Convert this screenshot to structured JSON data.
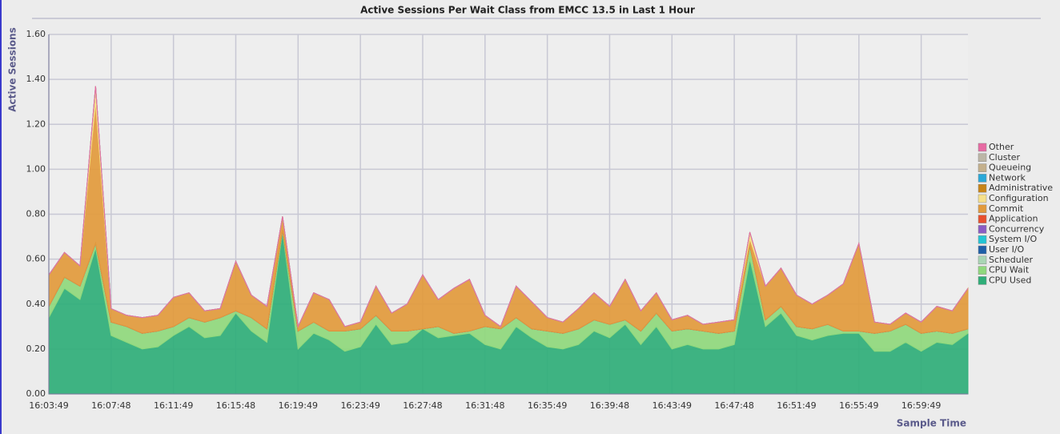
{
  "chart_data": {
    "type": "stacked-area",
    "title": "Active Sessions Per Wait Class from EMCC 13.5 in Last 1 Hour",
    "y_label": "Active Sessions",
    "x_label": "Sample Time",
    "grid": true,
    "legend": "right",
    "categories": [
      "16:03:49",
      null,
      null,
      null,
      "16:07:48",
      null,
      null,
      null,
      "16:11:49",
      null,
      null,
      null,
      "16:15:48",
      null,
      null,
      null,
      "16:19:49",
      null,
      null,
      null,
      "16:23:49",
      null,
      null,
      null,
      "16:27:48",
      null,
      null,
      null,
      "16:31:48",
      null,
      null,
      null,
      "16:35:49",
      null,
      null,
      null,
      "16:39:48",
      null,
      null,
      null,
      "16:43:49",
      null,
      null,
      null,
      "16:47:48",
      null,
      null,
      null,
      "16:51:49",
      null,
      null,
      null,
      "16:55:49",
      null,
      null,
      null,
      "16:59:49",
      null,
      null,
      null
    ],
    "ylim": [
      0,
      1.6
    ],
    "yticks": [
      {
        "value": 0,
        "label": "0.00"
      },
      {
        "value": 0.2,
        "label": "0.20"
      },
      {
        "value": 0.4,
        "label": "0.40"
      },
      {
        "value": 0.6,
        "label": "0.60"
      },
      {
        "value": 0.8,
        "label": "0.80"
      },
      {
        "value": 1.0,
        "label": "1.00"
      },
      {
        "value": 1.2,
        "label": "1.20"
      },
      {
        "value": 1.4,
        "label": "1.40"
      },
      {
        "value": 1.6,
        "label": "1.60"
      }
    ],
    "series": [
      {
        "name": "CPU Used",
        "color": "#2fae78",
        "values": [
          0.34,
          0.47,
          0.42,
          0.65,
          0.26,
          0.23,
          0.2,
          0.21,
          0.26,
          0.3,
          0.25,
          0.26,
          0.36,
          0.28,
          0.23,
          0.72,
          0.2,
          0.27,
          0.24,
          0.19,
          0.21,
          0.31,
          0.22,
          0.23,
          0.29,
          0.25,
          0.26,
          0.27,
          0.22,
          0.2,
          0.3,
          0.25,
          0.21,
          0.2,
          0.22,
          0.28,
          0.25,
          0.31,
          0.22,
          0.3,
          0.2,
          0.22,
          0.2,
          0.2,
          0.22,
          0.6,
          0.3,
          0.36,
          0.26,
          0.24,
          0.26,
          0.27,
          0.27,
          0.19,
          0.19,
          0.23,
          0.19,
          0.23,
          0.22,
          0.27
        ]
      },
      {
        "name": "CPU Wait",
        "color": "#8fd87c",
        "values": [
          0.05,
          0.05,
          0.06,
          0.02,
          0.06,
          0.07,
          0.07,
          0.07,
          0.04,
          0.04,
          0.07,
          0.08,
          0.01,
          0.06,
          0.06,
          0.01,
          0.08,
          0.05,
          0.04,
          0.09,
          0.08,
          0.04,
          0.06,
          0.05,
          0,
          0.05,
          0.01,
          0.01,
          0.08,
          0.09,
          0.04,
          0.04,
          0.07,
          0.07,
          0.07,
          0.05,
          0.06,
          0.02,
          0.06,
          0.06,
          0.08,
          0.07,
          0.08,
          0.07,
          0.06,
          0.06,
          0.03,
          0.03,
          0.04,
          0.05,
          0.05,
          0.01,
          0.01,
          0.08,
          0.09,
          0.08,
          0.08,
          0.05,
          0.05,
          0.02
        ]
      },
      {
        "name": "Scheduler",
        "color": "#a9d6b4",
        "values": [
          0,
          0,
          0,
          0,
          0,
          0,
          0,
          0,
          0,
          0,
          0,
          0,
          0,
          0,
          0,
          0,
          0,
          0,
          0,
          0,
          0,
          0,
          0,
          0,
          0,
          0,
          0,
          0,
          0,
          0,
          0,
          0,
          0,
          0,
          0,
          0,
          0,
          0,
          0,
          0,
          0,
          0,
          0,
          0,
          0,
          0,
          0,
          0,
          0,
          0,
          0,
          0,
          0,
          0,
          0,
          0,
          0,
          0,
          0,
          0
        ]
      },
      {
        "name": "User I/O",
        "color": "#1f5fa8",
        "values": [
          0,
          0,
          0,
          0,
          0,
          0,
          0,
          0,
          0,
          0,
          0,
          0,
          0,
          0,
          0,
          0,
          0,
          0,
          0,
          0,
          0,
          0,
          0,
          0,
          0,
          0,
          0,
          0,
          0,
          0,
          0,
          0,
          0,
          0,
          0,
          0,
          0,
          0,
          0,
          0,
          0,
          0,
          0,
          0,
          0,
          0,
          0,
          0,
          0,
          0,
          0,
          0,
          0,
          0,
          0,
          0,
          0,
          0,
          0,
          0
        ]
      },
      {
        "name": "System I/O",
        "color": "#22c4d4",
        "values": [
          0,
          0,
          0,
          0,
          0,
          0,
          0,
          0,
          0,
          0,
          0,
          0,
          0,
          0,
          0,
          0,
          0,
          0,
          0,
          0,
          0,
          0,
          0,
          0,
          0,
          0,
          0,
          0,
          0,
          0,
          0,
          0,
          0,
          0,
          0,
          0,
          0,
          0,
          0,
          0,
          0,
          0,
          0,
          0,
          0,
          0,
          0,
          0,
          0,
          0,
          0,
          0,
          0,
          0,
          0,
          0,
          0,
          0,
          0,
          0
        ]
      },
      {
        "name": "Concurrency",
        "color": "#8a5cc4",
        "values": [
          0,
          0,
          0,
          0,
          0,
          0,
          0,
          0,
          0,
          0,
          0,
          0,
          0,
          0,
          0,
          0,
          0,
          0,
          0,
          0,
          0,
          0,
          0,
          0,
          0,
          0,
          0,
          0,
          0,
          0,
          0,
          0,
          0,
          0,
          0,
          0,
          0,
          0,
          0,
          0,
          0,
          0,
          0,
          0,
          0,
          0,
          0,
          0,
          0,
          0,
          0,
          0,
          0,
          0,
          0,
          0,
          0,
          0,
          0,
          0
        ]
      },
      {
        "name": "Application",
        "color": "#e8502e",
        "values": [
          0,
          0,
          0,
          0,
          0,
          0,
          0,
          0,
          0,
          0,
          0,
          0,
          0,
          0,
          0,
          0,
          0,
          0,
          0,
          0,
          0,
          0,
          0,
          0,
          0,
          0,
          0,
          0,
          0,
          0,
          0,
          0,
          0,
          0,
          0,
          0,
          0,
          0,
          0,
          0,
          0,
          0,
          0,
          0,
          0,
          0,
          0,
          0,
          0,
          0,
          0,
          0,
          0,
          0,
          0,
          0,
          0,
          0,
          0,
          0
        ]
      },
      {
        "name": "Commit",
        "color": "#e29a3c",
        "values": [
          0.14,
          0.11,
          0.09,
          0.63,
          0.06,
          0.05,
          0.07,
          0.07,
          0.13,
          0.11,
          0.05,
          0.04,
          0.22,
          0.1,
          0.1,
          0.06,
          0.02,
          0.13,
          0.14,
          0.02,
          0.03,
          0.13,
          0.08,
          0.12,
          0.24,
          0.12,
          0.2,
          0.23,
          0.05,
          0.01,
          0.14,
          0.12,
          0.06,
          0.05,
          0.09,
          0.12,
          0.08,
          0.18,
          0.09,
          0.09,
          0.05,
          0.06,
          0.03,
          0.05,
          0.05,
          0.03,
          0.15,
          0.17,
          0.14,
          0.11,
          0.13,
          0.21,
          0.39,
          0.05,
          0.03,
          0.05,
          0.05,
          0.11,
          0.1,
          0.18
        ]
      },
      {
        "name": "Configuration",
        "color": "#f6e08a",
        "values": [
          0,
          0,
          0,
          0.07,
          0,
          0,
          0,
          0,
          0,
          0,
          0,
          0,
          0,
          0,
          0,
          0,
          0,
          0,
          0,
          0,
          0,
          0,
          0,
          0,
          0,
          0,
          0,
          0,
          0,
          0,
          0,
          0,
          0,
          0,
          0,
          0,
          0,
          0,
          0,
          0,
          0,
          0,
          0,
          0,
          0,
          0.03,
          0,
          0,
          0,
          0,
          0,
          0,
          0,
          0,
          0,
          0,
          0,
          0,
          0,
          0
        ]
      },
      {
        "name": "Administrative",
        "color": "#c88416",
        "values": [
          0,
          0,
          0,
          0,
          0,
          0,
          0,
          0,
          0,
          0,
          0,
          0,
          0,
          0,
          0,
          0,
          0,
          0,
          0,
          0,
          0,
          0,
          0,
          0,
          0,
          0,
          0,
          0,
          0,
          0,
          0,
          0,
          0,
          0,
          0,
          0,
          0,
          0,
          0,
          0,
          0,
          0,
          0,
          0,
          0,
          0,
          0,
          0,
          0,
          0,
          0,
          0,
          0,
          0,
          0,
          0,
          0,
          0,
          0,
          0
        ]
      },
      {
        "name": "Network",
        "color": "#2aa8d8",
        "values": [
          0,
          0,
          0,
          0,
          0,
          0,
          0,
          0,
          0,
          0,
          0,
          0,
          0,
          0,
          0,
          0,
          0,
          0,
          0,
          0,
          0,
          0,
          0,
          0,
          0,
          0,
          0,
          0,
          0,
          0,
          0,
          0,
          0,
          0,
          0,
          0,
          0,
          0,
          0,
          0,
          0,
          0,
          0,
          0,
          0,
          0,
          0,
          0,
          0,
          0,
          0,
          0,
          0,
          0,
          0,
          0,
          0,
          0,
          0,
          0
        ]
      },
      {
        "name": "Queueing",
        "color": "#c4b08c",
        "values": [
          0,
          0,
          0,
          0,
          0,
          0,
          0,
          0,
          0,
          0,
          0,
          0,
          0,
          0,
          0,
          0,
          0,
          0,
          0,
          0,
          0,
          0,
          0,
          0,
          0,
          0,
          0,
          0,
          0,
          0,
          0,
          0,
          0,
          0,
          0,
          0,
          0,
          0,
          0,
          0,
          0,
          0,
          0,
          0,
          0,
          0,
          0,
          0,
          0,
          0,
          0,
          0,
          0,
          0,
          0,
          0,
          0,
          0,
          0,
          0
        ]
      },
      {
        "name": "Cluster",
        "color": "#bcb6a6",
        "values": [
          0,
          0,
          0,
          0,
          0,
          0,
          0,
          0,
          0,
          0,
          0,
          0,
          0,
          0,
          0,
          0,
          0,
          0,
          0,
          0,
          0,
          0,
          0,
          0,
          0,
          0,
          0,
          0,
          0,
          0,
          0,
          0,
          0,
          0,
          0,
          0,
          0,
          0,
          0,
          0,
          0,
          0,
          0,
          0,
          0,
          0,
          0,
          0,
          0,
          0,
          0,
          0,
          0,
          0,
          0,
          0,
          0,
          0,
          0,
          0
        ]
      },
      {
        "name": "Other",
        "color": "#e76aa3",
        "values": [
          0,
          0,
          0,
          0,
          0,
          0,
          0,
          0,
          0,
          0,
          0,
          0,
          0,
          0,
          0,
          0,
          0,
          0,
          0,
          0,
          0,
          0,
          0,
          0,
          0,
          0,
          0,
          0,
          0,
          0,
          0,
          0,
          0,
          0,
          0,
          0,
          0,
          0,
          0,
          0,
          0,
          0,
          0,
          0,
          0,
          0,
          0,
          0,
          0,
          0,
          0,
          0,
          0,
          0,
          0,
          0,
          0,
          0,
          0,
          0
        ]
      }
    ]
  }
}
